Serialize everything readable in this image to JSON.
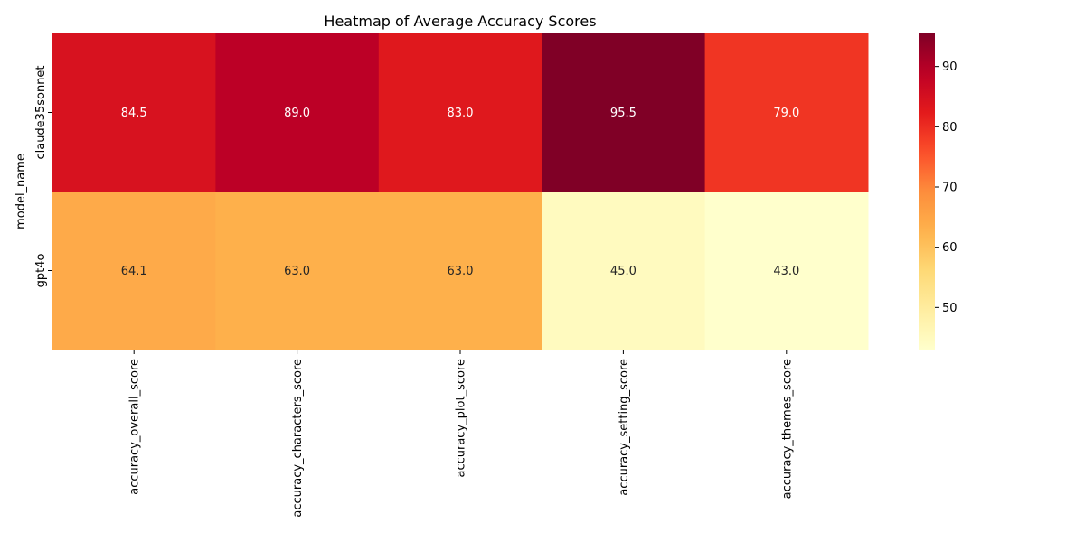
{
  "chart_data": {
    "type": "heatmap",
    "title": "Heatmap of Average Accuracy Scores",
    "xlabel": "",
    "ylabel": "model_name",
    "rows": [
      "claude35sonnet",
      "gpt4o"
    ],
    "columns": [
      "accuracy_overall_score",
      "accuracy_characters_score",
      "accuracy_plot_score",
      "accuracy_setting_score",
      "accuracy_themes_score"
    ],
    "values": [
      [
        84.5,
        89.0,
        83.0,
        95.5,
        79.0
      ],
      [
        64.1,
        63.0,
        63.0,
        45.0,
        43.0
      ]
    ],
    "annotation_format": "0.1f",
    "colormap": "YlOrRd",
    "vmin": 43.0,
    "vmax": 95.5,
    "colorbar_ticks": [
      50,
      60,
      70,
      80,
      90
    ],
    "colors": {
      "low": "#ffffcc",
      "high": "#800026",
      "annotation_light": "#ffffff",
      "annotation_dark": "#262626"
    }
  }
}
